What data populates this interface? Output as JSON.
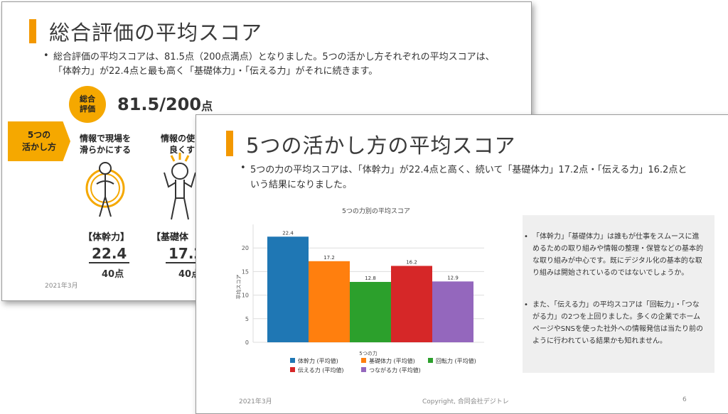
{
  "back_slide": {
    "title": "総合評価の平均スコア",
    "bullet": "総合評価の平均スコアは、81.5点（200点満点）となりました。5つの活かし方それぞれの平均スコアは、「体幹力」が22.4点と最も高く「基礎体力」・「伝える力」がそれに続きます。",
    "badge": "総合\n評価",
    "score_main": "81.5/200",
    "score_unit": "点",
    "arrow_label": "5つの\n活かし方",
    "columns": [
      {
        "head": "情報で現場を\n滑らかにする",
        "name": "【体幹力】",
        "score": "22.4",
        "max": "40点"
      },
      {
        "head": "情報の使い\n良くす",
        "name": "【基礎体",
        "score": "17.2",
        "max": "40点"
      }
    ],
    "footer_date": "2021年3月",
    "colors": {
      "accent": "#f39800",
      "badge": "#f5a800"
    }
  },
  "front_slide": {
    "title": "5つの活かし方の平均スコア",
    "bullet": "5つの力の平均スコアは、「体幹力」が22.4点と高く、続いて「基礎体力」17.2点・「伝える力」16.2点という結果になりました。",
    "notes": [
      "「体幹力」「基礎体力」は誰もが仕事をスムースに進めるための取り組みや情報の整理・保管などの基本的な取り組みが中心です。既にデジタル化の基本的な取り組みは開始されているのではないでしょうか。",
      "また、「伝える力」の平均スコアは「回転力」・「つながる力」の2つを上回りました。多くの企業でホームページやSNSを使った社外への情報発信は当たり前のように行われている結果かも知れません。"
    ],
    "footer_date": "2021年3月",
    "footer_copyright": "Copyright, 合同会社デジトレ",
    "page_number": "6"
  },
  "chart_data": {
    "type": "bar",
    "title": "5つの力別の平均スコア",
    "xlabel": "5つの力",
    "ylabel": "平均スコア",
    "ylim": [
      0,
      25
    ],
    "yticks": [
      0,
      5,
      10,
      15,
      20
    ],
    "grid": true,
    "legend_position": "bottom",
    "series": [
      {
        "name": "体幹力 (平均値)",
        "value": 22.4,
        "color": "#1f77b4"
      },
      {
        "name": "基礎体力 (平均値)",
        "value": 17.2,
        "color": "#ff7f0e"
      },
      {
        "name": "回転力 (平均値)",
        "value": 12.8,
        "color": "#2ca02c"
      },
      {
        "name": "伝える力 (平均値)",
        "value": 16.2,
        "color": "#d62728"
      },
      {
        "name": "つながる力 (平均値)",
        "value": 12.9,
        "color": "#9467bd"
      }
    ]
  }
}
